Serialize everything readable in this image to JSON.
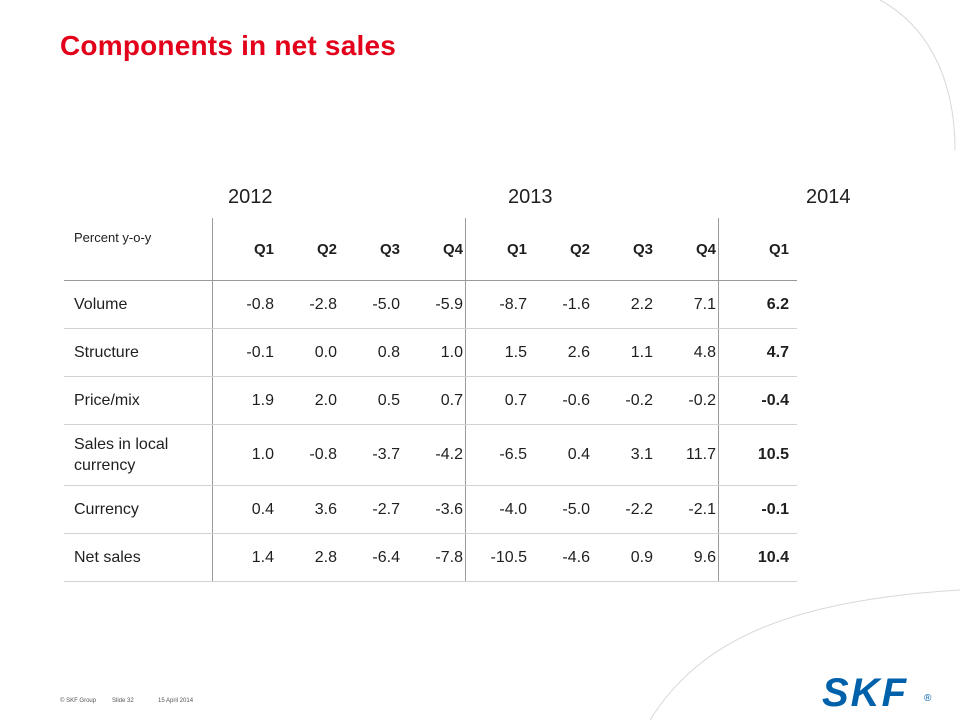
{
  "slide": {
    "title": "Components in net sales",
    "brand_color": "#e2001a"
  },
  "table": {
    "years": [
      "2012",
      "2013",
      "2014"
    ],
    "row_header": "Percent y-o-y",
    "quarters": [
      "Q1",
      "Q2",
      "Q3",
      "Q4",
      "Q1",
      "Q2",
      "Q3",
      "Q4",
      "Q1"
    ],
    "rows": [
      {
        "label": "Volume",
        "values": [
          "-0.8",
          "-2.8",
          "-5.0",
          "-5.9",
          "-8.7",
          "-1.6",
          "2.2",
          "7.1",
          "6.2"
        ]
      },
      {
        "label": "Structure",
        "values": [
          "-0.1",
          "0.0",
          "0.8",
          "1.0",
          "1.5",
          "2.6",
          "1.1",
          "4.8",
          "4.7"
        ]
      },
      {
        "label": "Price/mix",
        "values": [
          "1.9",
          "2.0",
          "0.5",
          "0.7",
          "0.7",
          "-0.6",
          "-0.2",
          "-0.2",
          "-0.4"
        ]
      },
      {
        "label": "Sales in local currency",
        "values": [
          "1.0",
          "-0.8",
          "-3.7",
          "-4.2",
          "-6.5",
          "0.4",
          "3.1",
          "11.7",
          "10.5"
        ]
      },
      {
        "label": "Currency",
        "values": [
          "0.4",
          "3.6",
          "-2.7",
          "-3.6",
          "-4.0",
          "-5.0",
          "-2.2",
          "-2.1",
          "-0.1"
        ]
      },
      {
        "label": "Net sales",
        "values": [
          "1.4",
          "2.8",
          "-6.4",
          "-7.8",
          "-10.5",
          "-4.6",
          "0.9",
          "9.6",
          "10.4"
        ]
      }
    ]
  },
  "footer": {
    "copyright": "© SKF Group",
    "slide_no": "Slide 32",
    "date": "15 April 2014"
  },
  "logo": {
    "text": "SKF",
    "registered": "®",
    "color": "#0061ab"
  }
}
